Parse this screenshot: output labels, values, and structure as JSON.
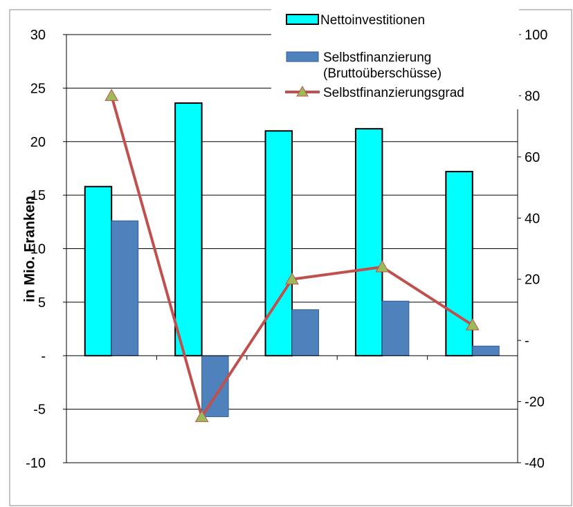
{
  "chart_data": {
    "type": "bar",
    "categories": [
      "",
      "",
      "",
      "",
      ""
    ],
    "ylabel": "in Mio. Franken",
    "ylim": [
      -10,
      30
    ],
    "y_ticks": [
      "-10",
      "-5",
      "-",
      "5",
      "10",
      "15",
      "20",
      "25",
      "30"
    ],
    "y2lim": [
      -40,
      100
    ],
    "y2_ticks": [
      "-40",
      "-20",
      "-",
      "20",
      "40",
      "60",
      "80",
      "100"
    ],
    "grid": true,
    "legend_position": "top-right",
    "series": [
      {
        "name": "Nettoinvestitionen",
        "type": "bar",
        "axis": "left",
        "color": "#00ffff",
        "values": [
          15.8,
          23.6,
          21.0,
          21.2,
          17.2
        ]
      },
      {
        "name": "Selbstfinanzierung",
        "name_line2": "(Bruttoüberschüsse)",
        "type": "bar",
        "axis": "left",
        "color": "#4f81bd",
        "values": [
          12.6,
          -5.7,
          4.3,
          5.1,
          0.9
        ]
      },
      {
        "name": "Selbstfinanzierungsgrad",
        "type": "line",
        "axis": "right",
        "color": "#c0504d",
        "marker_color": "#9bbb59",
        "values": [
          80,
          -25,
          20,
          24,
          5
        ]
      }
    ]
  }
}
